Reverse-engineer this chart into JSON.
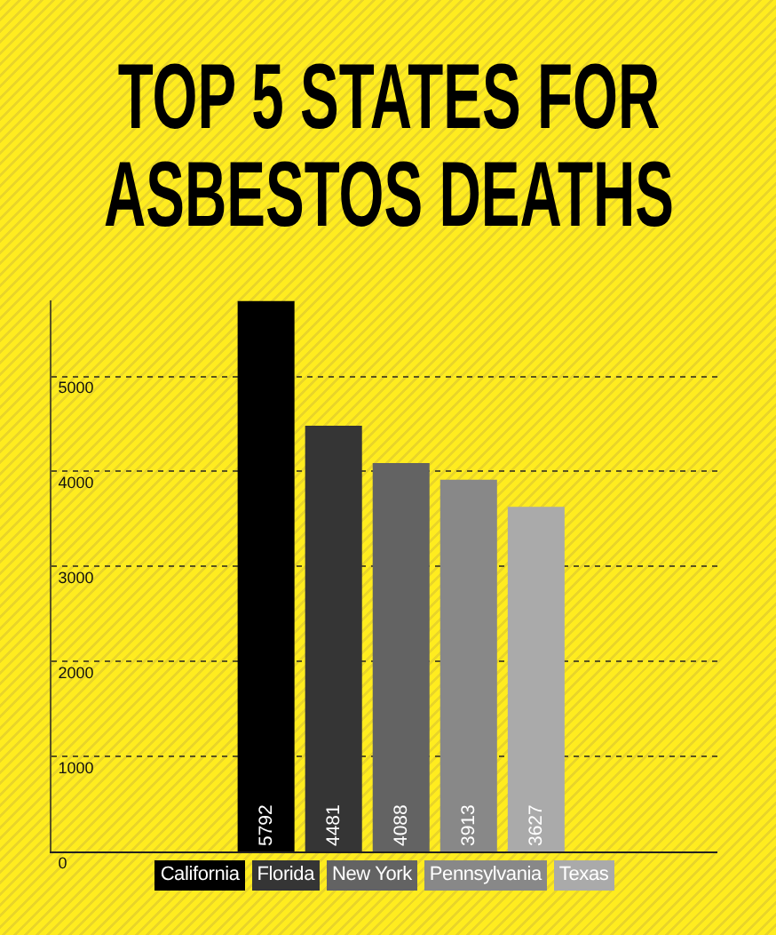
{
  "chart_data": {
    "type": "bar",
    "title": "TOP 5 STATES FOR ASBESTOS DEATHS",
    "categories": [
      null
    ],
    "series": [
      {
        "name": "California",
        "color": "#000000",
        "values": [
          5792
        ]
      },
      {
        "name": "Florida",
        "color": "#353535",
        "values": [
          4481
        ]
      },
      {
        "name": "New York",
        "color": "#636363",
        "values": [
          4088
        ]
      },
      {
        "name": "Pennsylvania",
        "color": "#888888",
        "values": [
          3913
        ]
      },
      {
        "name": "Texas",
        "color": "#aaaaaa",
        "values": [
          3627
        ]
      }
    ],
    "ylim": [
      0,
      5800
    ],
    "yticks": [
      0,
      1000,
      2000,
      3000,
      4000,
      5000
    ],
    "grid": "y",
    "legend": "bottom",
    "tick_labels": "y",
    "data_labels": true
  }
}
